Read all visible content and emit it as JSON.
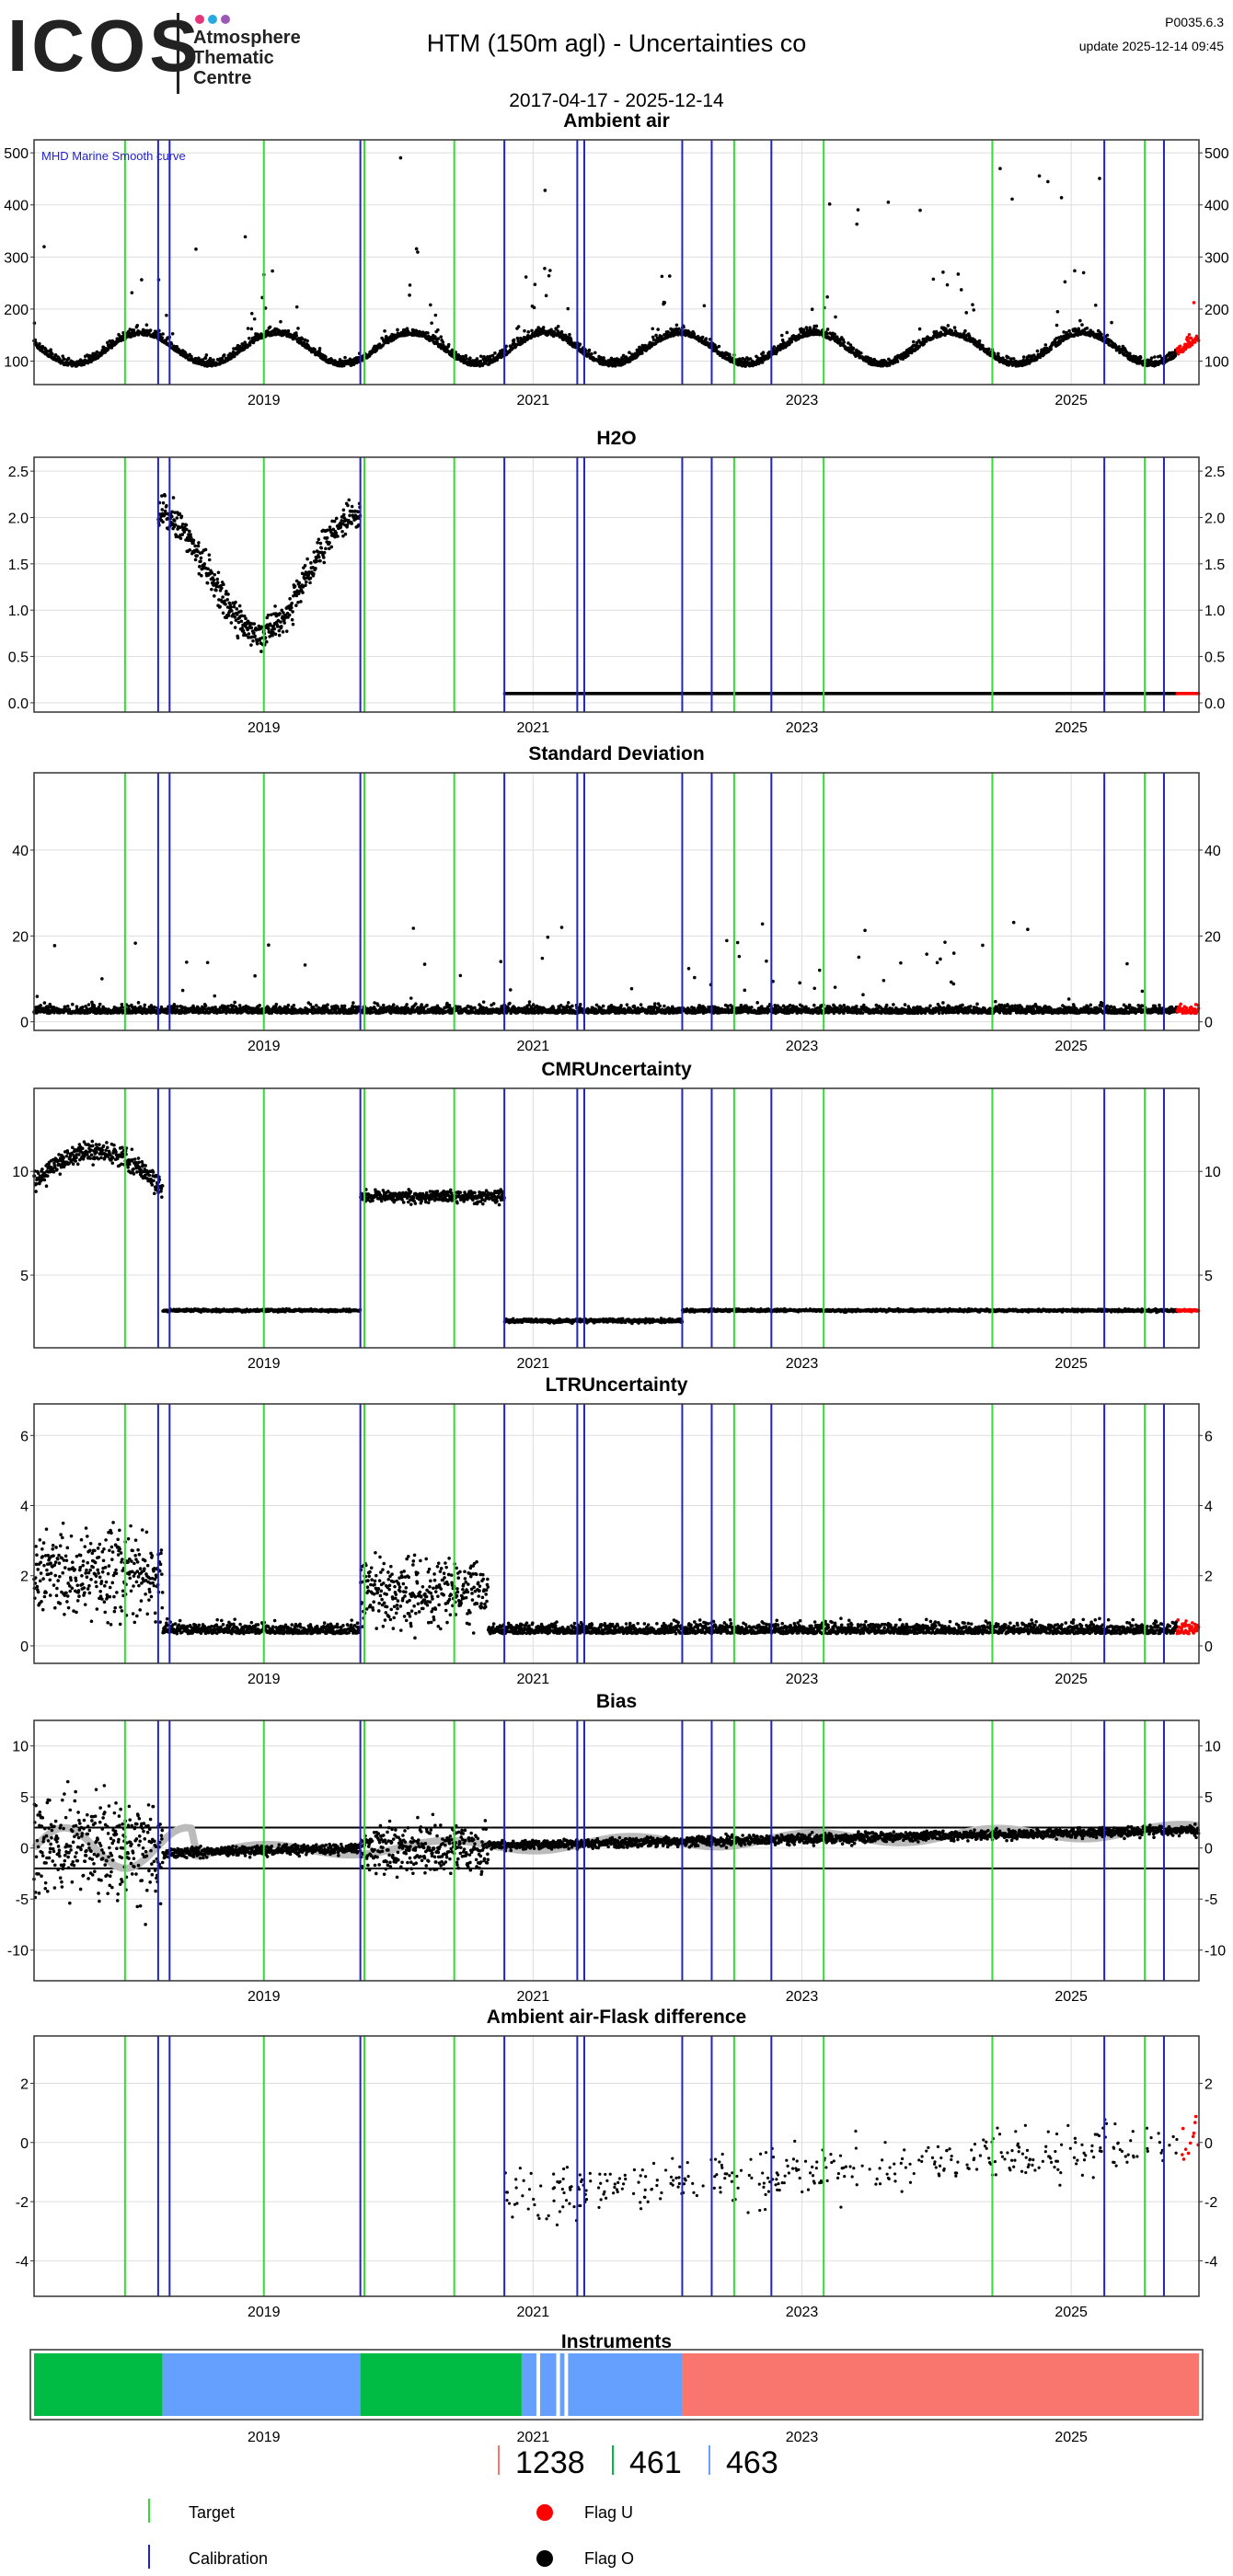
{
  "header": {
    "logo_text": "ICOS",
    "logo_sub": [
      "Atmosphere",
      "Thematic",
      "Centre"
    ],
    "logo_dot_colors": [
      "#e5357c",
      "#2aa8e0",
      "#9b59b6"
    ],
    "title": "HTM  (150m agl) - Uncertainties co",
    "date_range": "2017-04-17 - 2025-12-14",
    "version": "P0035.6.3",
    "update": "update  2025-12-14 09:45"
  },
  "colors": {
    "target_line": "#33dd33",
    "calibration_line": "#2222cc",
    "flag_u": "#ff0000",
    "flag_o": "#000000",
    "bias_smooth": "#bbbbbb",
    "bias_recent": "#f0a030",
    "grid": "#dddddd"
  },
  "chart_data": {
    "x_range": [
      "2017-04-17",
      "2025-12-14"
    ],
    "x_ticks": [
      "2019",
      "2021",
      "2023",
      "2025"
    ],
    "target_dates": [
      "2017-12-20",
      "2019-01-01",
      "2019-10-01",
      "2020-06-01",
      "2022-07-01",
      "2023-03-01",
      "2024-06-01",
      "2025-07-20"
    ],
    "calibration_dates": [
      "2018-03-20",
      "2018-04-20",
      "2019-09-20",
      "2020-10-15",
      "2021-05-01",
      "2021-05-20",
      "2022-02-10",
      "2022-05-01",
      "2022-10-10",
      "2025-04-01",
      "2025-09-10"
    ],
    "panels": [
      {
        "id": "ambient",
        "type": "scatter",
        "title": "Ambient air",
        "yticks": [
          100,
          200,
          300,
          400,
          500
        ],
        "ylim": [
          55,
          525
        ],
        "annotation": "MHD Marine Smooth curve",
        "base": 130
      },
      {
        "id": "h2o",
        "type": "scatter",
        "title": "H2O",
        "yticks": [
          0.0,
          0.5,
          1.0,
          1.5,
          2.0,
          2.5
        ],
        "ylim": [
          -0.1,
          2.65
        ]
      },
      {
        "id": "stdev",
        "type": "scatter",
        "title": "Standard Deviation",
        "yticks": [
          0,
          20,
          40
        ],
        "ylim": [
          -2,
          58
        ]
      },
      {
        "id": "cmr",
        "type": "scatter",
        "title": "CMRUncertainty",
        "yticks": [
          5,
          10
        ],
        "ylim": [
          1.5,
          14
        ]
      },
      {
        "id": "ltr",
        "type": "scatter",
        "title": "LTRUncertainty",
        "yticks": [
          0,
          2,
          4,
          6
        ],
        "ylim": [
          -0.5,
          6.9
        ]
      },
      {
        "id": "bias",
        "type": "scatter",
        "title": "Bias",
        "yticks": [
          -10,
          -5,
          0,
          5,
          10
        ],
        "ylim": [
          -13,
          12.5
        ],
        "hlines": [
          2,
          -2
        ]
      },
      {
        "id": "flask",
        "type": "scatter",
        "title": "Ambient air-Flask difference",
        "yticks": [
          -4,
          -2,
          0,
          2
        ],
        "ylim": [
          -5.2,
          3.6
        ]
      }
    ],
    "instruments": {
      "title": "Instruments",
      "segments": [
        {
          "start": "2017-04-17",
          "end": "2018-04-01",
          "color": "#00bb44"
        },
        {
          "start": "2018-04-01",
          "end": "2019-09-20",
          "color": "#66a0ff"
        },
        {
          "start": "2019-09-20",
          "end": "2020-12-01",
          "color": "#00bb44"
        },
        {
          "start": "2020-12-01",
          "end": "2022-02-10",
          "color": "#66a0ff"
        },
        {
          "start": "2022-02-10",
          "end": "2025-12-14",
          "color": "#f8766d"
        }
      ],
      "gaps": [
        "2021-01-15",
        "2021-03-10",
        "2021-04-01"
      ],
      "legend": [
        {
          "label": "1238",
          "color": "#f8766d"
        },
        {
          "label": "461",
          "color": "#00bb44"
        },
        {
          "label": "463",
          "color": "#66a0ff"
        }
      ]
    }
  },
  "legend": {
    "target": "Target",
    "calibration": "Calibration",
    "flag_u": "Flag U",
    "flag_o": "Flag O"
  }
}
